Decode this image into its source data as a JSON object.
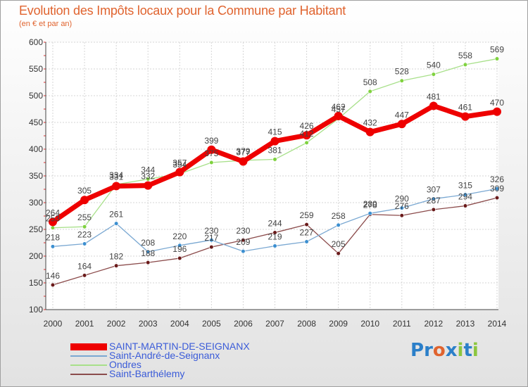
{
  "title": "Evolution des Impôts locaux pour la Commune par Habitant",
  "subtitle": "(en € et par an)",
  "brand": {
    "text": "Proxiti",
    "letters": [
      "P",
      "r",
      "o",
      "x",
      "i",
      "t",
      "i"
    ],
    "colors": [
      "#2b7fc9",
      "#2b7fc9",
      "#e0632e",
      "#2b7fc9",
      "#8cc63f",
      "#2b7fc9",
      "#8cc63f"
    ]
  },
  "chart_data": {
    "type": "line",
    "x": [
      2000,
      2001,
      2002,
      2003,
      2004,
      2005,
      2006,
      2007,
      2008,
      2009,
      2010,
      2011,
      2012,
      2013,
      2014
    ],
    "ylim": [
      100,
      600
    ],
    "yticks": [
      100,
      150,
      200,
      250,
      300,
      350,
      400,
      450,
      500,
      550,
      600
    ],
    "grid": true,
    "legend_position": "bottom-left",
    "series": [
      {
        "name": "SAINT-MARTIN-DE-SEIGNANX",
        "color": "#ee0000",
        "point_color": "#ee0000",
        "values": [
          264,
          305,
          331,
          332,
          357,
          399,
          377,
          415,
          426,
          462,
          432,
          447,
          481,
          461,
          470
        ],
        "labels": [
          "264",
          "305",
          "331",
          "332",
          "357",
          "399",
          "377",
          "415",
          "426",
          "462",
          "432",
          "447",
          "481",
          "461",
          "470"
        ]
      },
      {
        "name": "Saint-André-de-Seignanx",
        "color": "#7aa8d2",
        "point_color": "#3c8fd0",
        "values": [
          218,
          223,
          261,
          208,
          220,
          230,
          209,
          219,
          227,
          258,
          280,
          290,
          307,
          315,
          326
        ],
        "labels": [
          "218",
          "223",
          "261",
          "208",
          "220",
          "230",
          "209",
          "219",
          "227",
          "258",
          "280",
          "290",
          "307",
          "315",
          "326"
        ]
      },
      {
        "name": "Ondres",
        "color": "#a8e08a",
        "point_color": "#7fd23e",
        "values": [
          253,
          255,
          334,
          344,
          354,
          375,
          379,
          381,
          412,
          457,
          508,
          528,
          540,
          558,
          569
        ],
        "labels": [
          "253",
          "255",
          "334",
          "344",
          "354",
          "375",
          "379",
          "381",
          "412",
          "457",
          "508",
          "528",
          "540",
          "558",
          "569"
        ]
      },
      {
        "name": "Saint-Barthélemy",
        "color": "#8b4b4b",
        "point_color": "#6a1a1a",
        "values": [
          146,
          164,
          182,
          188,
          196,
          217,
          230,
          244,
          259,
          205,
          278,
          276,
          287,
          294,
          309
        ],
        "labels": [
          "146",
          "164",
          "182",
          "188",
          "196",
          "217",
          "230",
          "244",
          "259",
          "205",
          "278",
          "276",
          "287",
          "294",
          "309"
        ]
      }
    ]
  }
}
